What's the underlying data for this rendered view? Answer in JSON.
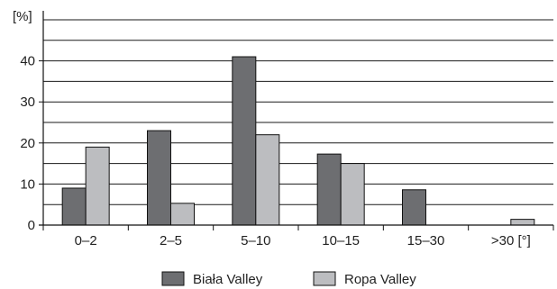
{
  "chart_data": {
    "type": "bar",
    "ylabel": "[%]",
    "xlabel": "",
    "title": "",
    "categories": [
      "0–2",
      "2–5",
      "5–10",
      "10–15",
      "15–30",
      ">30 [°]"
    ],
    "ylim": [
      0,
      50
    ],
    "yticks": [
      0,
      10,
      20,
      30,
      40
    ],
    "grid": true,
    "legend_position": "bottom",
    "series": [
      {
        "name": "Biała Valley",
        "values": [
          9,
          23,
          41,
          17.3,
          8.6,
          0
        ],
        "color": "#6d6e71"
      },
      {
        "name": "Ropa Valley",
        "values": [
          19,
          5.3,
          22,
          15,
          0,
          1.4
        ],
        "color": "#bcbdc0"
      }
    ]
  }
}
